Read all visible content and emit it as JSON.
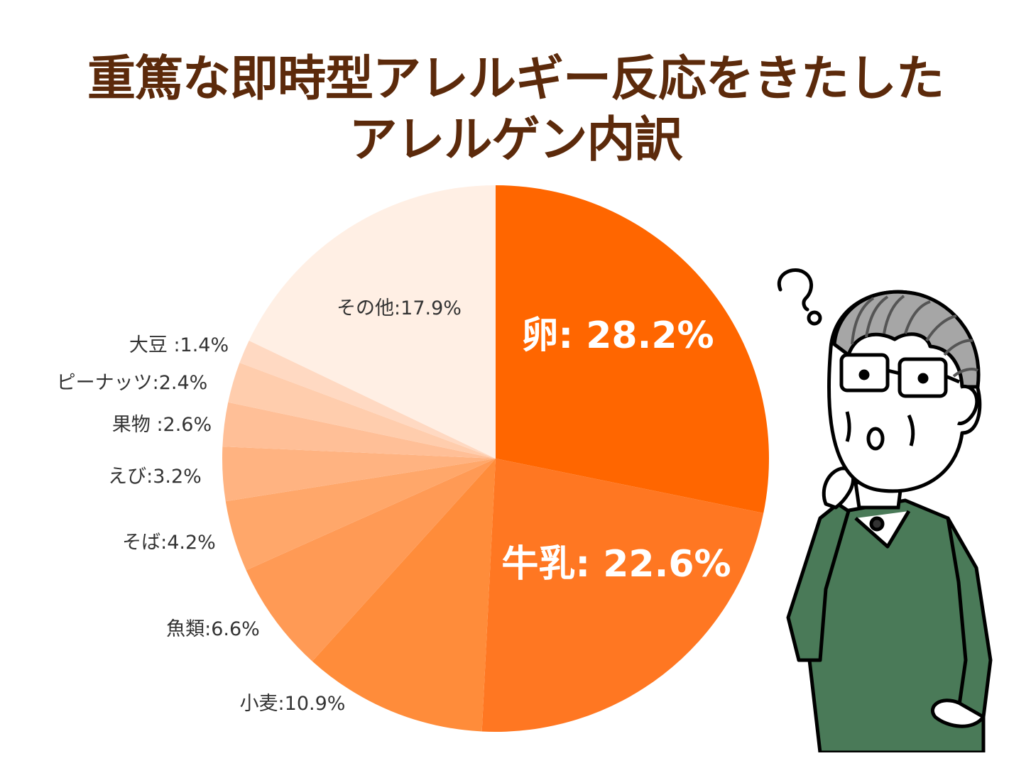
{
  "title": {
    "line1": "重篤な即時型アレルギー反応をきたした",
    "line2": "アレルゲン内訳"
  },
  "colors": {
    "title": "#5c2a0b",
    "label_dark": "#333333",
    "label_light": "#ffffff"
  },
  "chart_data": {
    "type": "pie",
    "title": "重篤な即時型アレルギー反応をきたしたアレルゲン内訳",
    "start_angle": "12 o'clock",
    "direction": "clockwise",
    "slices": [
      {
        "label": "卵",
        "display": "卵: 28.2%",
        "value": 28.2,
        "color": "#ff6600",
        "label_style": "inside-white"
      },
      {
        "label": "牛乳",
        "display": "牛乳: 22.6%",
        "value": 22.6,
        "color": "#ff7722",
        "label_style": "inside-white"
      },
      {
        "label": "小麦",
        "display": "小麦:10.9%",
        "value": 10.9,
        "color": "#ff8c3a",
        "label_style": "outside"
      },
      {
        "label": "魚類",
        "display": "魚類:6.6%",
        "value": 6.6,
        "color": "#ff9a55",
        "label_style": "outside"
      },
      {
        "label": "そば",
        "display": "そば:4.2%",
        "value": 4.2,
        "color": "#ffa76a",
        "label_style": "outside"
      },
      {
        "label": "えび",
        "display": "えび:3.2%",
        "value": 3.2,
        "color": "#ffb381",
        "label_style": "outside"
      },
      {
        "label": "果物",
        "display": "果物 :2.6%",
        "value": 2.6,
        "color": "#ffbf97",
        "label_style": "outside"
      },
      {
        "label": "ピーナッツ",
        "display": "ピーナッツ:2.4%",
        "value": 2.4,
        "color": "#ffcdad",
        "label_style": "outside"
      },
      {
        "label": "大豆",
        "display": "大豆 :1.4%",
        "value": 1.4,
        "color": "#ffd9c2",
        "label_style": "outside"
      },
      {
        "label": "その他",
        "display": "その他:17.9%",
        "value": 17.9,
        "color": "#ffefe4",
        "label_style": "inside-dark"
      }
    ]
  },
  "illustration": {
    "description_icon": "thinking-old-man",
    "sweater_color": "#4a7a58"
  }
}
